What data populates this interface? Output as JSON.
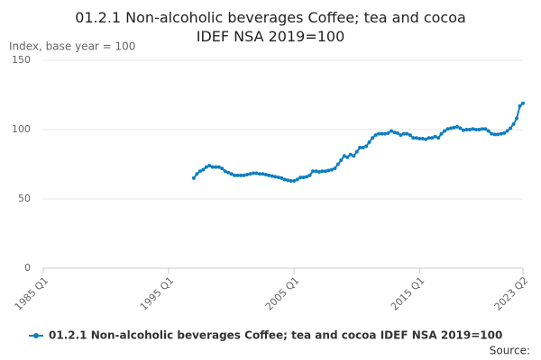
{
  "chart_data": {
    "type": "line",
    "title": "01.2.1 Non-alcoholic beverages Coffee; tea and cocoa IDEF NSA 2019=100",
    "y_label": "Index, base year = 100",
    "source": "Source:",
    "xlim": [
      1985,
      2023.25
    ],
    "xticks": [
      {
        "value": 1985,
        "label": "1985 Q1"
      },
      {
        "value": 1995,
        "label": "1995 Q1"
      },
      {
        "value": 2005,
        "label": "2005 Q1"
      },
      {
        "value": 2015,
        "label": "2015 Q1"
      },
      {
        "value": 2023.25,
        "label": "2023 Q2"
      }
    ],
    "ylim": [
      0,
      150
    ],
    "yticks": [
      0,
      50,
      100,
      150
    ],
    "grid": true,
    "x": [
      1997,
      1997.25,
      1997.5,
      1997.75,
      1998,
      1998.25,
      1998.5,
      1998.75,
      1999,
      1999.25,
      1999.5,
      1999.75,
      2000,
      2000.25,
      2000.5,
      2000.75,
      2001,
      2001.25,
      2001.5,
      2001.75,
      2002,
      2002.25,
      2002.5,
      2002.75,
      2003,
      2003.25,
      2003.5,
      2003.75,
      2004,
      2004.25,
      2004.5,
      2004.75,
      2005,
      2005.25,
      2005.5,
      2005.75,
      2006,
      2006.25,
      2006.5,
      2006.75,
      2007,
      2007.25,
      2007.5,
      2007.75,
      2008,
      2008.25,
      2008.5,
      2008.75,
      2009,
      2009.25,
      2009.5,
      2009.75,
      2010,
      2010.25,
      2010.5,
      2010.75,
      2011,
      2011.25,
      2011.5,
      2011.75,
      2012,
      2012.25,
      2012.5,
      2012.75,
      2013,
      2013.25,
      2013.5,
      2013.75,
      2014,
      2014.25,
      2014.5,
      2014.75,
      2015,
      2015.25,
      2015.5,
      2015.75,
      2016,
      2016.25,
      2016.5,
      2016.75,
      2017,
      2017.25,
      2017.5,
      2017.75,
      2018,
      2018.25,
      2018.5,
      2018.75,
      2019,
      2019.25,
      2019.5,
      2019.75,
      2020,
      2020.25,
      2020.5,
      2020.75,
      2021,
      2021.25,
      2021.5,
      2021.75,
      2022,
      2022.25,
      2022.5,
      2022.75,
      2023,
      2023.25
    ],
    "series": [
      {
        "name": "01.2.1 Non-alcoholic beverages Coffee; tea and cocoa IDEF NSA 2019=100",
        "color": "#0f7fbf",
        "values": [
          65,
          68,
          70,
          71,
          73,
          74,
          73,
          73,
          73,
          72,
          70,
          69,
          68,
          67,
          67,
          67,
          67,
          67.5,
          68,
          68.5,
          68.5,
          68,
          68,
          67.5,
          67,
          66.5,
          66,
          65.5,
          65,
          64,
          63.5,
          63,
          63,
          64,
          65.5,
          65.5,
          66,
          67,
          70,
          70,
          69.5,
          70,
          70,
          70.5,
          71,
          72,
          75,
          78,
          81,
          80,
          82,
          81,
          84,
          87,
          87,
          88,
          91,
          94,
          96,
          97,
          97,
          97,
          97.5,
          99,
          98,
          97.5,
          96,
          97,
          97,
          96,
          94,
          94,
          93.5,
          93.5,
          93,
          94,
          94,
          95,
          94,
          97,
          99,
          100.5,
          101,
          101.5,
          102,
          101,
          99.5,
          100,
          100,
          100.5,
          100,
          100,
          100.5,
          100.5,
          99,
          97,
          96.5,
          96.5,
          97,
          97.5,
          99,
          101,
          104,
          108,
          117,
          119
        ]
      }
    ]
  }
}
